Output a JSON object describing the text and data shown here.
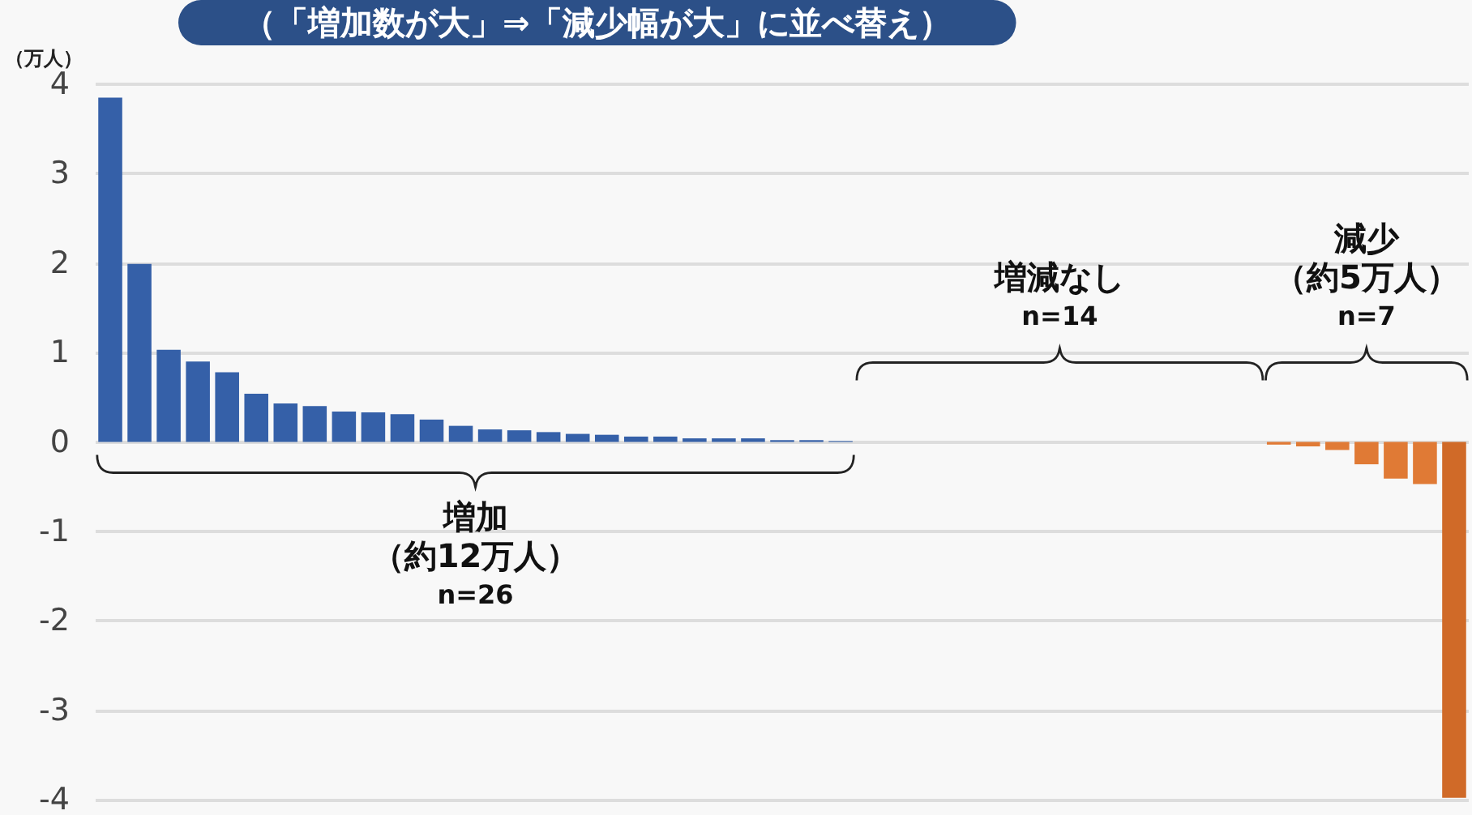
{
  "chart_data": {
    "type": "bar",
    "title": "（「増加数が大」⇒「減少幅が大」に並べ替え）",
    "ylabel": "（万人）",
    "categories": [
      null,
      null,
      null,
      null,
      null,
      null,
      null,
      null,
      null,
      null,
      null,
      null,
      null,
      null,
      null,
      null,
      null,
      null,
      null,
      null,
      null,
      null,
      null,
      null,
      null,
      null,
      null,
      null,
      null,
      null,
      null,
      null,
      null,
      null,
      null,
      null,
      null,
      null,
      null,
      null,
      null,
      null,
      null,
      null,
      null,
      null,
      null
    ],
    "values": [
      3.85,
      1.99,
      1.03,
      0.9,
      0.78,
      0.54,
      0.43,
      0.4,
      0.34,
      0.33,
      0.31,
      0.25,
      0.18,
      0.14,
      0.13,
      0.11,
      0.09,
      0.08,
      0.06,
      0.06,
      0.04,
      0.04,
      0.04,
      0.02,
      0.02,
      0.01,
      0,
      0,
      0,
      0,
      0,
      0,
      0,
      0,
      0,
      0,
      0,
      0,
      0,
      0,
      -0.03,
      -0.05,
      -0.09,
      -0.25,
      -0.41,
      -0.47,
      -3.98
    ],
    "colors": [
      "#3560a8",
      "#3560a8",
      "#3560a8",
      "#3560a8",
      "#3560a8",
      "#3560a8",
      "#3560a8",
      "#3560a8",
      "#3560a8",
      "#3560a8",
      "#3560a8",
      "#3560a8",
      "#3560a8",
      "#3560a8",
      "#3560a8",
      "#3560a8",
      "#3560a8",
      "#3560a8",
      "#3560a8",
      "#3560a8",
      "#3560a8",
      "#3560a8",
      "#3560a8",
      "#3560a8",
      "#3560a8",
      "#3560a8",
      "#3560a8",
      "#3560a8",
      "#3560a8",
      "#3560a8",
      "#3560a8",
      "#3560a8",
      "#3560a8",
      "#3560a8",
      "#3560a8",
      "#3560a8",
      "#3560a8",
      "#3560a8",
      "#3560a8",
      "#3560a8",
      "#e07a35",
      "#e07a35",
      "#e07a35",
      "#e07a35",
      "#e07a35",
      "#e07a35",
      "#d06a28"
    ],
    "ylim": [
      -4,
      4
    ],
    "yticks": [
      -4,
      -3,
      -2,
      -1,
      0,
      1,
      2,
      3,
      4
    ],
    "grid": "y",
    "annotations": [
      "増加",
      "（約12万人）",
      "n=26",
      "増減なし",
      "n=14",
      "減少",
      "（約5万人）",
      "n=7"
    ]
  }
}
